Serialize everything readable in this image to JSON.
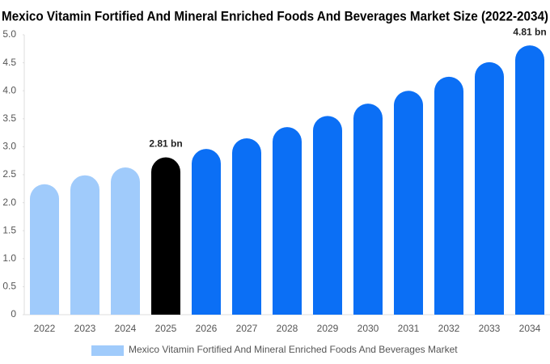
{
  "chart_data": {
    "type": "bar",
    "title": "Mexico Vitamin Fortified And Mineral Enriched Foods And Beverages Market Size (2022-2034)",
    "categories": [
      "2022",
      "2023",
      "2024",
      "2025",
      "2026",
      "2027",
      "2028",
      "2029",
      "2030",
      "2031",
      "2032",
      "2033",
      "2034"
    ],
    "series": [
      {
        "name": "Mexico Vitamin Fortified And Mineral Enriched Foods And Beverages Market",
        "color": "#a0cbfb",
        "colors": [
          "#a0cbfb",
          "#a0cbfb",
          "#a0cbfb",
          "#000000",
          "#0b6ff5",
          "#0b6ff5",
          "#0b6ff5",
          "#0b6ff5",
          "#0b6ff5",
          "#0b6ff5",
          "#0b6ff5",
          "#0b6ff5",
          "#0b6ff5"
        ],
        "values": [
          2.33,
          2.49,
          2.63,
          2.81,
          2.96,
          3.15,
          3.35,
          3.55,
          3.77,
          4.0,
          4.25,
          4.51,
          4.81
        ],
        "value_labels": [
          null,
          null,
          null,
          "2.81 bn",
          null,
          null,
          null,
          null,
          null,
          null,
          null,
          null,
          "4.81 bn"
        ]
      }
    ],
    "ylim": [
      0,
      5
    ],
    "yticks": [
      0,
      0.5,
      {
        "value": 1,
        "label": "1.0"
      },
      1.5,
      {
        "value": 2,
        "label": "2.0"
      },
      2.5,
      {
        "value": 3,
        "label": "3.0"
      },
      3.5,
      {
        "value": 4,
        "label": "4.0"
      },
      4.5,
      {
        "value": 5,
        "label": "5.0"
      }
    ],
    "grid": false
  }
}
